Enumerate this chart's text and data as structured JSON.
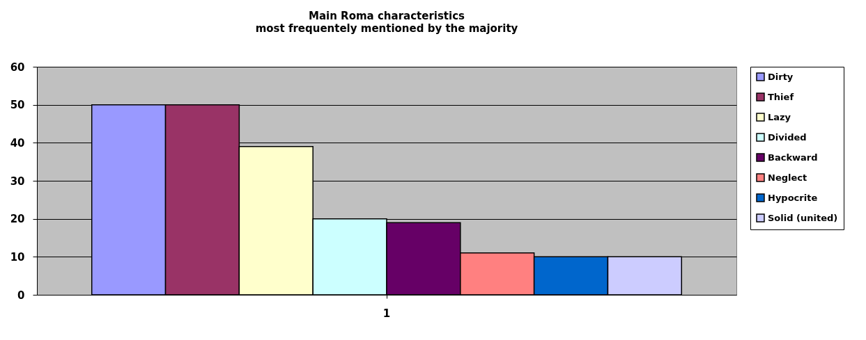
{
  "chart_data": {
    "type": "bar",
    "title": "Main Roma characteristics",
    "subtitle": "most frequentely mentioned by the majority",
    "categories": [
      "1"
    ],
    "series": [
      {
        "name": "Dirty",
        "color": "#9999ff",
        "values": [
          50
        ]
      },
      {
        "name": "Thief",
        "color": "#993366",
        "values": [
          50
        ]
      },
      {
        "name": "Lazy",
        "color": "#ffffcc",
        "values": [
          39
        ]
      },
      {
        "name": "Divided",
        "color": "#ccffff",
        "values": [
          20
        ]
      },
      {
        "name": "Backward",
        "color": "#660066",
        "values": [
          19
        ]
      },
      {
        "name": "Neglect",
        "color": "#ff8080",
        "values": [
          11
        ]
      },
      {
        "name": "Hypocrite",
        "color": "#0066cc",
        "values": [
          10
        ]
      },
      {
        "name": "Solid (united)",
        "color": "#ccccff",
        "values": [
          10
        ]
      }
    ],
    "ylim": [
      0,
      60
    ],
    "yticks": [
      0,
      10,
      20,
      30,
      40,
      50,
      60
    ],
    "grid": "y",
    "legend": "right"
  }
}
